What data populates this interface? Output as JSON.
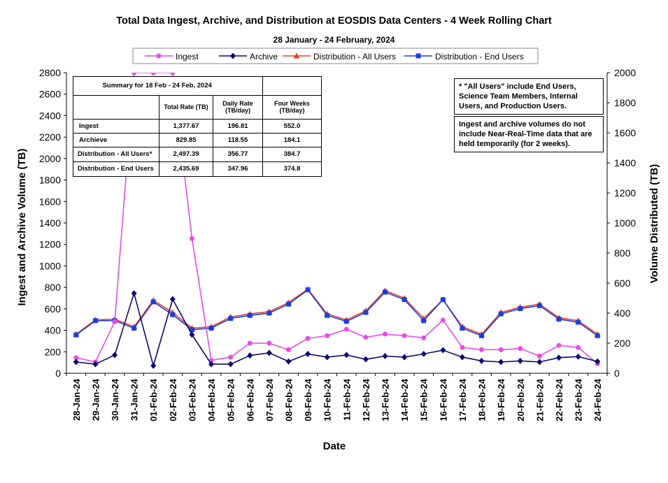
{
  "chart_data": {
    "type": "line",
    "title": "Total Data Ingest, Archive, and  Distribution at EOSDIS Data Centers - 4 Week Rolling Chart",
    "subtitle": "28 January  -  24 February,  2024",
    "xlabel": "Date",
    "ylabel": "Ingest and Archive Volume (TB)",
    "y2label": "Volume Distributed (TB)",
    "ylim": [
      0,
      2800
    ],
    "y2lim": [
      0,
      2000
    ],
    "yticks": [
      0,
      200,
      400,
      600,
      800,
      1000,
      1200,
      1400,
      1600,
      1800,
      2000,
      2200,
      2400,
      2600,
      2800
    ],
    "y2ticks": [
      0,
      200,
      400,
      600,
      800,
      1000,
      1200,
      1400,
      1600,
      1800,
      2000
    ],
    "legend_position": "top",
    "categories": [
      "28-Jan-24",
      "29-Jan-24",
      "30-Jan-24",
      "31-Jan-24",
      "01-Feb-24",
      "02-Feb-24",
      "03-Feb-24",
      "04-Feb-24",
      "05-Feb-24",
      "06-Feb-24",
      "07-Feb-24",
      "08-Feb-24",
      "09-Feb-24",
      "10-Feb-24",
      "11-Feb-24",
      "12-Feb-24",
      "13-Feb-24",
      "14-Feb-24",
      "15-Feb-24",
      "16-Feb-24",
      "17-Feb-24",
      "18-Feb-24",
      "19-Feb-24",
      "20-Feb-24",
      "21-Feb-24",
      "22-Feb-24",
      "23-Feb-24",
      "24-Feb-24"
    ],
    "series": [
      {
        "name": "Ingest",
        "axis": "left",
        "color": "#e64ce6",
        "marker": "circle",
        "values": [
          145,
          105,
          480,
          2800,
          2800,
          2800,
          1255,
          120,
          150,
          280,
          280,
          220,
          325,
          350,
          410,
          335,
          365,
          350,
          330,
          495,
          240,
          220,
          220,
          230,
          160,
          260,
          240,
          90
        ]
      },
      {
        "name": "Archive",
        "axis": "left",
        "color": "#0a0a6e",
        "marker": "diamond",
        "values": [
          105,
          85,
          170,
          745,
          70,
          690,
          360,
          85,
          85,
          165,
          190,
          110,
          180,
          150,
          170,
          130,
          160,
          150,
          180,
          215,
          150,
          115,
          105,
          115,
          105,
          145,
          155,
          110
        ]
      },
      {
        "name": "Distribution - All Users",
        "axis": "right",
        "color": "#e8402b",
        "marker": "triangle",
        "values": [
          260,
          355,
          360,
          310,
          485,
          405,
          300,
          310,
          375,
          395,
          410,
          470,
          560,
          395,
          355,
          415,
          550,
          500,
          365,
          490,
          310,
          260,
          405,
          440,
          460,
          370,
          350,
          260
        ]
      },
      {
        "name": "Distribution - End Users",
        "axis": "right",
        "color": "#1a3fe0",
        "marker": "square",
        "values": [
          255,
          350,
          350,
          300,
          475,
          390,
          290,
          300,
          365,
          385,
          400,
          460,
          555,
          385,
          345,
          405,
          540,
          490,
          350,
          490,
          300,
          250,
          395,
          430,
          450,
          360,
          340,
          250
        ]
      }
    ]
  },
  "summary_table": {
    "title": "Summary  for  18  Feb   -  24  Feb,  2024",
    "headers": [
      "Total Rate (TB)",
      "Daily Rate (TB/day)",
      "Four Weeks (TB/day)"
    ],
    "rows": [
      {
        "label": "Ingest",
        "total": "1,377.67",
        "daily": "196.81",
        "four": "552.0"
      },
      {
        "label": "Archieve",
        "total": "829.85",
        "daily": "118.55",
        "four": "184.1"
      },
      {
        "label": "Distribution - All Users*",
        "total": "2,497.39",
        "daily": "356.77",
        "four": "384.7"
      },
      {
        "label": "Distribution - End Users",
        "total": "2,435.69",
        "daily": "347.96",
        "four": "374.8"
      }
    ]
  },
  "notes": {
    "all_users": "* \"All Users\" include End Users, Science Team Members,  Internal Users, and Production Users.",
    "nrt": "Ingest and archive volumes do not include Near-Real-Time data that are held temporarily (for 2 weeks)."
  }
}
